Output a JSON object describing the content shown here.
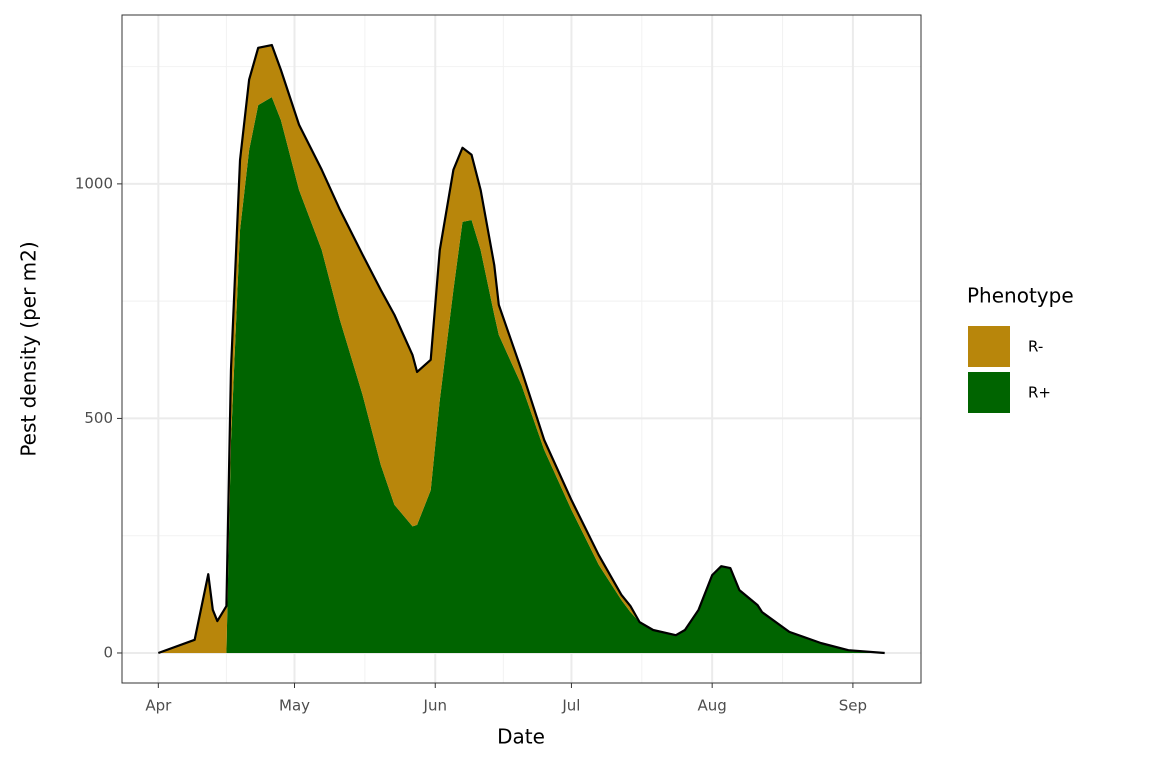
{
  "chart_data": {
    "type": "stacked_area",
    "x_label": "Date",
    "y_label": "Pest density (per m2)",
    "legend_title": "Phenotype",
    "legend": "right",
    "grid": true,
    "outline_color": "#000000",
    "x": [
      0,
      8,
      11,
      12,
      13,
      15,
      16,
      18,
      20,
      22,
      25,
      27,
      31,
      36,
      40,
      45,
      49,
      52,
      56,
      57,
      60,
      62,
      65,
      67,
      69,
      71,
      74,
      75,
      80,
      85,
      91,
      97,
      102,
      104,
      106,
      109,
      114,
      116,
      119,
      122,
      124,
      126,
      128,
      132,
      133,
      139,
      146,
      152,
      160
    ],
    "series": [
      {
        "name": "R-",
        "color": "#B8860B",
        "values": [
          0,
          28,
          168,
          92,
          68,
          100,
          153,
          149,
          150,
          122,
          111,
          107,
          139,
          171,
          235,
          299,
          373,
          405,
          365,
          326,
          278,
          320,
          256,
          158,
          139,
          128,
          106,
          64,
          32,
          21,
          21,
          21,
          11,
          13,
          0,
          0,
          0,
          0,
          0,
          0,
          0,
          0,
          0,
          0,
          0,
          0,
          0,
          0,
          0
        ]
      },
      {
        "name": "R+",
        "color": "#006400",
        "values": [
          0,
          0,
          0,
          0,
          0,
          0,
          450,
          902,
          1072,
          1168,
          1185,
          1136,
          987,
          859,
          710,
          550,
          401,
          316,
          270,
          273,
          347,
          539,
          774,
          919,
          923,
          859,
          721,
          678,
          571,
          433,
          305,
          188,
          113,
          87,
          66,
          49,
          38,
          49,
          92,
          166,
          185,
          181,
          134,
          102,
          87,
          45,
          21,
          6,
          0
        ]
      }
    ],
    "xlim": [
      -8,
      168
    ],
    "xticks": [
      {
        "value": 0,
        "label": "Apr"
      },
      {
        "value": 30,
        "label": "May"
      },
      {
        "value": 61,
        "label": "Jun"
      },
      {
        "value": 91,
        "label": "Jul"
      },
      {
        "value": 122,
        "label": "Aug"
      },
      {
        "value": 153,
        "label": "Sep"
      }
    ],
    "ylim": [
      -64,
      1360
    ],
    "yticks": [
      0,
      500,
      1000
    ]
  }
}
